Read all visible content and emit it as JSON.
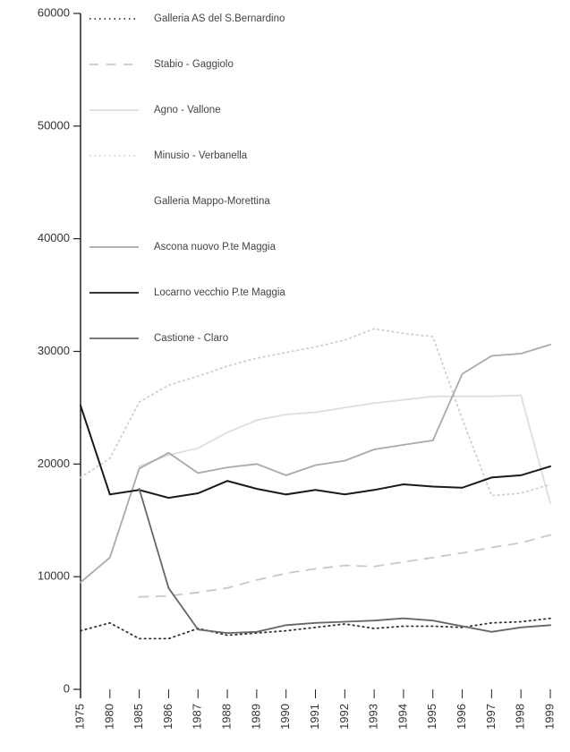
{
  "chart_data": {
    "type": "line",
    "categories": [
      "1975",
      "1980",
      "1985",
      "1986",
      "1987",
      "1988",
      "1989",
      "1990",
      "1991",
      "1992",
      "1993",
      "1994",
      "1995",
      "1996",
      "1997",
      "1998",
      "1999"
    ],
    "ylim": [
      0,
      60000
    ],
    "yticks": [
      0,
      10000,
      20000,
      30000,
      40000,
      50000,
      60000
    ],
    "legend": "upper left",
    "series": [
      {
        "name": "Galleria  AS del  S.Bernardino",
        "color": "#333333",
        "style": "dotted",
        "values": [
          5200,
          5900,
          4500,
          4500,
          5400,
          4800,
          5000,
          5200,
          5500,
          5800,
          5400,
          5600,
          5600,
          5500,
          5900,
          6000,
          6300
        ]
      },
      {
        "name": "Stabio - Gaggiolo",
        "color": "#c8c8c8",
        "style": "dashed",
        "values": [
          null,
          null,
          8200,
          8300,
          8600,
          9000,
          9700,
          10300,
          10700,
          11000,
          10900,
          11300,
          11700,
          12100,
          12600,
          13000,
          13700
        ]
      },
      {
        "name": "Agno - Vallone",
        "color": "#dedede",
        "style": "solid",
        "values": [
          null,
          null,
          19800,
          20800,
          21400,
          22800,
          23900,
          24400,
          24600,
          25000,
          25400,
          25700,
          26000,
          26000,
          26000,
          26100,
          16500
        ]
      },
      {
        "name": "Minusio - Verbanella",
        "color": "#cfcfcf",
        "style": "dotted",
        "values": [
          18800,
          20500,
          25500,
          27000,
          27800,
          28700,
          29400,
          29900,
          30400,
          31000,
          32000,
          31600,
          31300,
          24000,
          17200,
          17400,
          18200
        ]
      },
      {
        "name": "Galleria Mappo-Morettina",
        "values": [
          null,
          null,
          null,
          null,
          null,
          null,
          null,
          null,
          null,
          null,
          null,
          null,
          null,
          null,
          null,
          null,
          null
        ]
      },
      {
        "name": "Ascona  nuovo P.te Maggia",
        "color": "#aaaaaa",
        "style": "solid",
        "values": [
          9500,
          11700,
          19600,
          21000,
          19200,
          19700,
          20000,
          19000,
          19900,
          20300,
          21300,
          21700,
          22100,
          28000,
          29600,
          29800,
          30600
        ]
      },
      {
        "name": "Locarno  vecchio P.te Maggia",
        "color": "#1a1a1a",
        "style": "solid",
        "values": [
          25200,
          17300,
          17700,
          17000,
          17400,
          18500,
          17800,
          17300,
          17700,
          17300,
          17700,
          18200,
          18000,
          17900,
          18800,
          19000,
          19800
        ]
      },
      {
        "name": "Castione - Claro",
        "color": "#666666",
        "style": "solid",
        "values": [
          null,
          null,
          17800,
          9000,
          5300,
          5000,
          5100,
          5700,
          5900,
          6000,
          6100,
          6300,
          6100,
          5600,
          5100,
          5500,
          5700
        ]
      }
    ]
  }
}
